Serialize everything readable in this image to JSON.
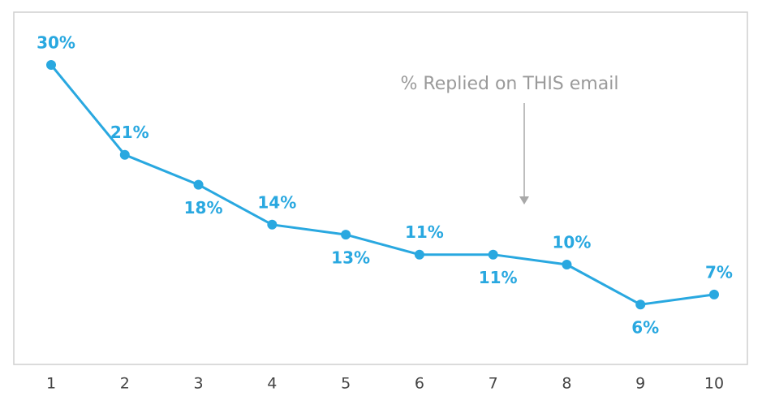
{
  "chart_data": {
    "type": "line",
    "annotation": "% Replied on THIS email",
    "categories": [
      1,
      2,
      3,
      4,
      5,
      6,
      7,
      8,
      9,
      10
    ],
    "values": [
      30,
      21,
      18,
      14,
      13,
      11,
      11,
      10,
      6,
      7
    ],
    "value_labels": [
      "30%",
      "21%",
      "18%",
      "14%",
      "13%",
      "11%",
      "11%",
      "10%",
      "6%",
      "7%"
    ],
    "color": "#29a8e0"
  }
}
